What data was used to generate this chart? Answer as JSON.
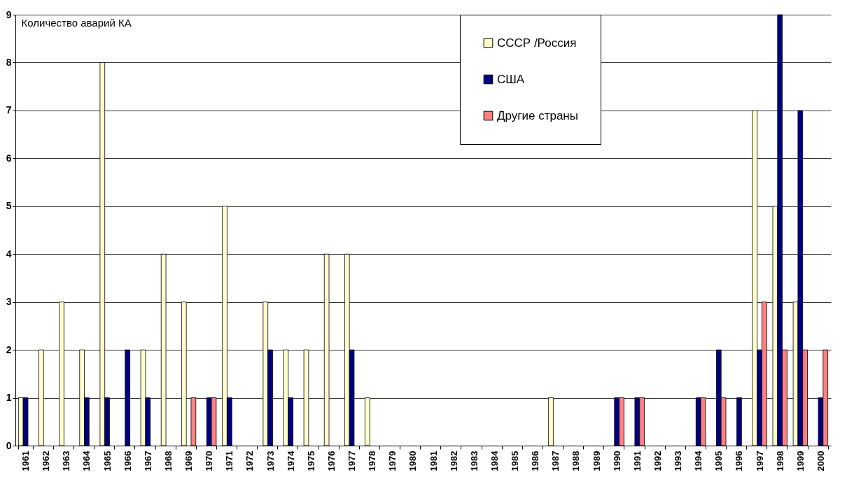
{
  "chart_data": {
    "type": "bar",
    "ylabel": "Количество аварий КА",
    "categories": [
      "1961",
      "1962",
      "1963",
      "1964",
      "1965",
      "1966",
      "1967",
      "1968",
      "1969",
      "1970",
      "1971",
      "1972",
      "1973",
      "1974",
      "1975",
      "1976",
      "1977",
      "1978",
      "1979",
      "1980",
      "1981",
      "1982",
      "1983",
      "1984",
      "1985",
      "1986",
      "1987",
      "1988",
      "1989",
      "1990",
      "1991",
      "1992",
      "1993",
      "1994",
      "1995",
      "1996",
      "1997",
      "1998",
      "1999",
      "2000"
    ],
    "series": [
      {
        "name": "СССР /Россия",
        "color": "#ffffcc",
        "values": [
          1,
          2,
          3,
          2,
          8,
          0,
          2,
          4,
          3,
          0,
          5,
          0,
          3,
          2,
          2,
          4,
          4,
          1,
          0,
          0,
          0,
          0,
          0,
          0,
          0,
          0,
          1,
          0,
          0,
          0,
          0,
          0,
          0,
          0,
          0,
          0,
          7,
          5,
          3,
          0
        ]
      },
      {
        "name": "США",
        "color": "#000080",
        "values": [
          1,
          0,
          0,
          1,
          1,
          2,
          1,
          0,
          0,
          1,
          1,
          0,
          2,
          1,
          0,
          0,
          2,
          0,
          0,
          0,
          0,
          0,
          0,
          0,
          0,
          0,
          0,
          0,
          0,
          1,
          1,
          0,
          0,
          1,
          2,
          1,
          2,
          9,
          7,
          1
        ]
      },
      {
        "name": "Другие страны",
        "color": "#ff8080",
        "values": [
          0,
          0,
          0,
          0,
          0,
          0,
          0,
          0,
          1,
          1,
          0,
          0,
          0,
          0,
          0,
          0,
          0,
          0,
          0,
          0,
          0,
          0,
          0,
          0,
          0,
          0,
          0,
          0,
          0,
          1,
          1,
          0,
          0,
          1,
          1,
          0,
          3,
          2,
          2,
          2
        ]
      }
    ],
    "ylim": [
      0,
      9
    ],
    "yticks": [
      0,
      1,
      2,
      3,
      4,
      5,
      6,
      7,
      8,
      9
    ],
    "grid": "y",
    "legend": "top right"
  }
}
